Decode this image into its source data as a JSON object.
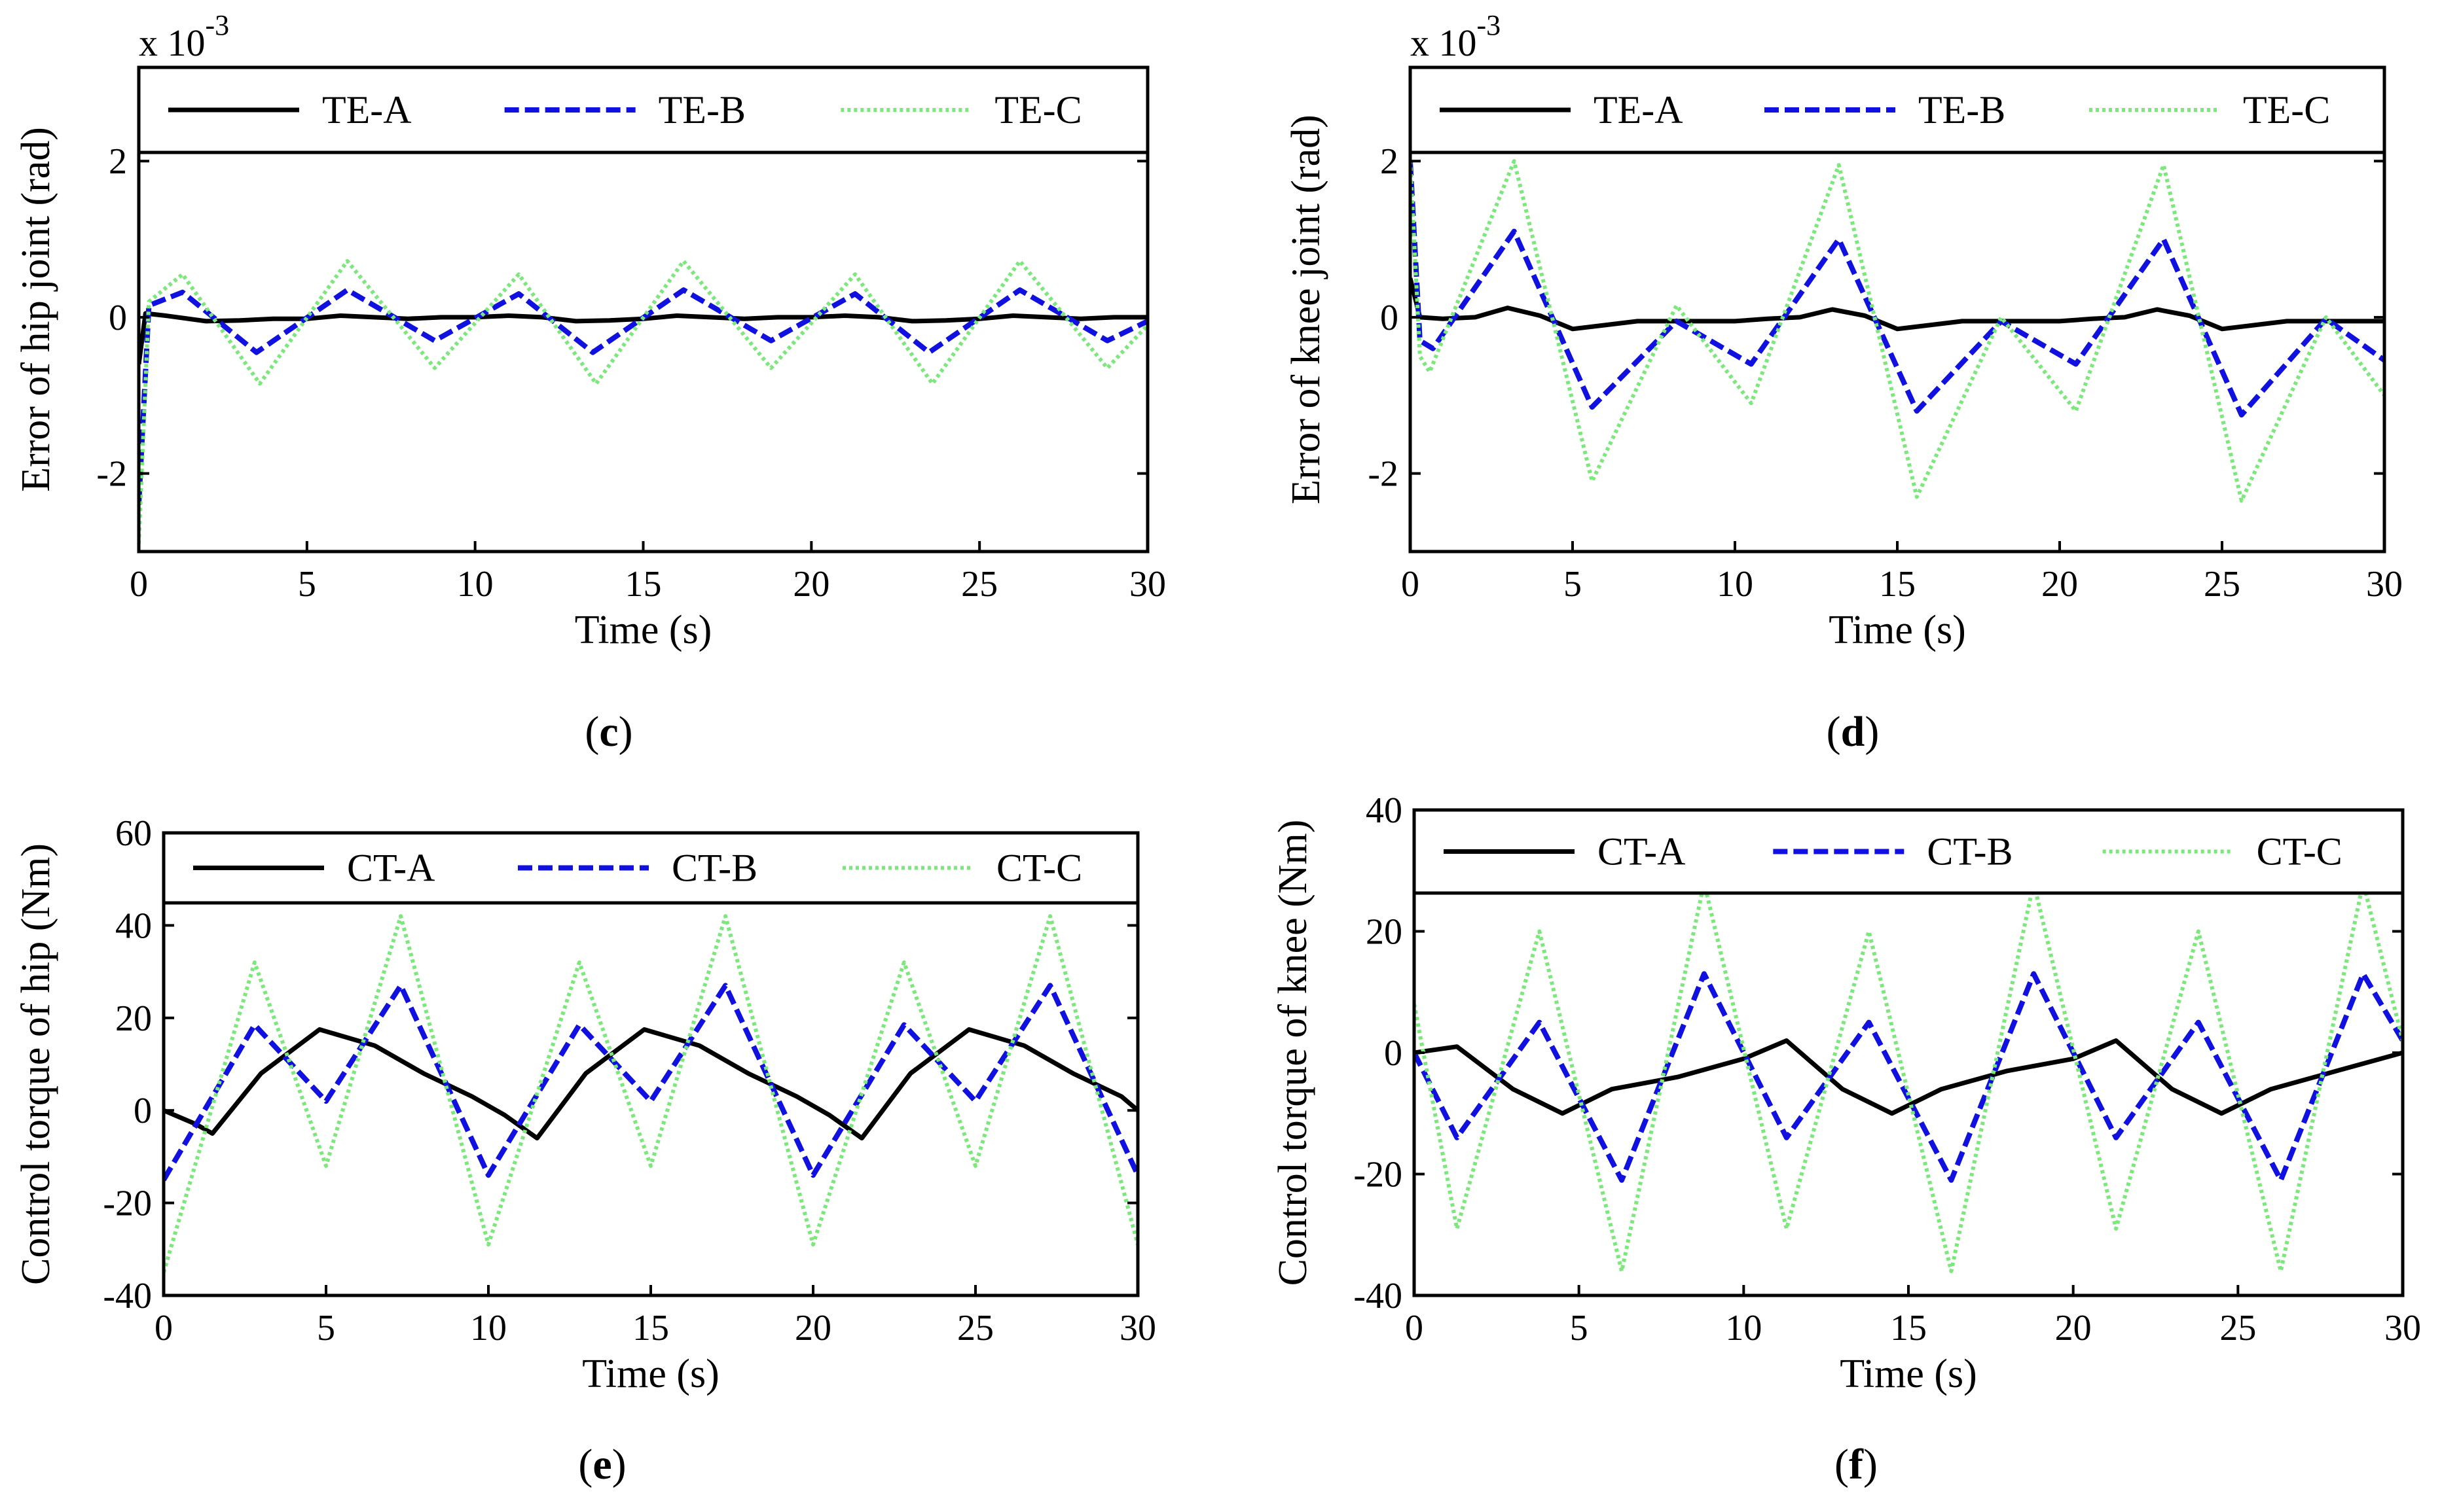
{
  "colors": {
    "A": "#000000",
    "B": "#1010e0",
    "C": "#7ce87c"
  },
  "chart_data": [
    {
      "id": "c",
      "type": "line",
      "panel_label": "c",
      "xlabel": "Time (s)",
      "ylabel": "Error of hip joint (rad)",
      "xlim": [
        0,
        30
      ],
      "ylim": [
        -3,
        3.2
      ],
      "xticks": [
        "0",
        "5",
        "10",
        "15",
        "20",
        "25",
        "30"
      ],
      "yticks": [
        "-2",
        "0",
        "2"
      ],
      "scale_note": "x 10",
      "scale_exp": "-3",
      "legend": [
        "TE-A",
        "TE-B",
        "TE-C"
      ],
      "series": [
        {
          "name": "TE-A",
          "x": [
            0,
            0.2,
            0.8,
            2,
            3,
            4,
            5,
            6,
            7,
            8,
            9,
            10,
            11,
            12,
            13,
            14,
            15,
            16,
            17,
            18,
            19,
            20,
            21,
            22,
            23,
            24,
            25,
            26,
            27,
            28,
            29,
            30
          ],
          "values": [
            -0.6,
            0.05,
            0.02,
            -0.05,
            -0.04,
            -0.02,
            -0.02,
            0.02,
            0.0,
            -0.02,
            0.0,
            0.0,
            0.02,
            0.0,
            -0.05,
            -0.04,
            -0.02,
            0.02,
            0.0,
            -0.02,
            0.0,
            0.0,
            0.02,
            0.0,
            -0.05,
            -0.04,
            -0.02,
            0.02,
            0.0,
            -0.02,
            0.0,
            0.0
          ]
        },
        {
          "name": "TE-B",
          "x": [
            0,
            0.3,
            1.3,
            3.5,
            6.2,
            8.8,
            11.3,
            13.5,
            16.2,
            18.8,
            21.3,
            23.5,
            26.2,
            28.8,
            30
          ],
          "values": [
            -2.4,
            0.15,
            0.32,
            -0.45,
            0.35,
            -0.3,
            0.3,
            -0.45,
            0.35,
            -0.3,
            0.3,
            -0.45,
            0.35,
            -0.3,
            -0.05
          ]
        },
        {
          "name": "TE-C",
          "x": [
            0,
            0.3,
            1.3,
            3.6,
            6.2,
            8.8,
            11.3,
            13.6,
            16.2,
            18.8,
            21.3,
            23.6,
            26.2,
            28.8,
            30
          ],
          "values": [
            -2.9,
            0.2,
            0.55,
            -0.85,
            0.72,
            -0.65,
            0.55,
            -0.85,
            0.72,
            -0.65,
            0.55,
            -0.85,
            0.72,
            -0.65,
            -0.1
          ]
        }
      ]
    },
    {
      "id": "d",
      "type": "line",
      "panel_label": "d",
      "xlabel": "Time (s)",
      "ylabel": "Error of knee joint (rad)",
      "xlim": [
        0,
        30
      ],
      "ylim": [
        -3,
        3.2
      ],
      "xticks": [
        "0",
        "5",
        "10",
        "15",
        "20",
        "25",
        "30"
      ],
      "yticks": [
        "-2",
        "0",
        "2"
      ],
      "scale_note": "x 10",
      "scale_exp": "-3",
      "legend": [
        "TE-A",
        "TE-B",
        "TE-C"
      ],
      "series": [
        {
          "name": "TE-A",
          "x": [
            0,
            0.3,
            1,
            2,
            3,
            4,
            5,
            6,
            7,
            8,
            9,
            10,
            11,
            12,
            13,
            14,
            15,
            16,
            17,
            18,
            19,
            20,
            21,
            22,
            23,
            24,
            25,
            26,
            27,
            28,
            29,
            30
          ],
          "values": [
            0.5,
            0.0,
            -0.02,
            0.0,
            0.12,
            0.02,
            -0.15,
            -0.1,
            -0.05,
            -0.05,
            -0.05,
            -0.05,
            -0.02,
            0.0,
            0.1,
            0.02,
            -0.15,
            -0.1,
            -0.05,
            -0.05,
            -0.05,
            -0.05,
            -0.02,
            0.0,
            0.1,
            0.02,
            -0.15,
            -0.1,
            -0.05,
            -0.05,
            -0.05,
            -0.05
          ]
        },
        {
          "name": "TE-B",
          "x": [
            0,
            0.3,
            0.7,
            3.2,
            5.6,
            8.2,
            10.5,
            13.2,
            15.6,
            18.2,
            20.5,
            23.2,
            25.6,
            28.2,
            30
          ],
          "values": [
            2.0,
            -0.3,
            -0.4,
            1.1,
            -1.15,
            -0.05,
            -0.6,
            1.0,
            -1.2,
            -0.05,
            -0.6,
            1.0,
            -1.25,
            -0.02,
            -0.55
          ]
        },
        {
          "name": "TE-C",
          "x": [
            0,
            0.3,
            0.6,
            3.2,
            5.6,
            8.2,
            10.5,
            13.2,
            15.6,
            18.2,
            20.5,
            23.2,
            25.6,
            28.2,
            30
          ],
          "values": [
            2.0,
            -0.5,
            -0.7,
            2.0,
            -2.1,
            0.15,
            -1.1,
            1.95,
            -2.3,
            0.0,
            -1.2,
            1.95,
            -2.35,
            0.0,
            -1.0
          ]
        }
      ]
    },
    {
      "id": "e",
      "type": "line",
      "panel_label": "e",
      "xlabel": "Time (s)",
      "ylabel": "Control torque of hip (Nm)",
      "xlim": [
        0,
        30
      ],
      "ylim": [
        -40,
        60
      ],
      "xticks": [
        "0",
        "5",
        "10",
        "15",
        "20",
        "25",
        "30"
      ],
      "yticks": [
        "-40",
        "-20",
        "0",
        "20",
        "40",
        "60"
      ],
      "legend": [
        "CT-A",
        "CT-B",
        "CT-C"
      ],
      "series": [
        {
          "name": "CT-A",
          "x": [
            0,
            1,
            1.5,
            3,
            4.8,
            6.5,
            8,
            9.5,
            10.5,
            11.5,
            13,
            14.8,
            16.5,
            18,
            19.5,
            20.5,
            21.5,
            23,
            24.8,
            26.5,
            28,
            29.5,
            30
          ],
          "values": [
            0,
            -3,
            -5,
            8,
            17.5,
            14,
            8,
            3,
            -1,
            -6,
            8,
            17.5,
            14,
            8,
            3,
            -1,
            -6,
            8,
            17.5,
            14,
            8,
            3,
            0
          ]
        },
        {
          "name": "CT-B",
          "x": [
            0,
            2.8,
            5,
            7.3,
            10,
            12.8,
            15,
            17.3,
            20,
            22.8,
            25,
            27.3,
            30
          ],
          "values": [
            -15,
            18.5,
            2,
            27,
            -14,
            18.5,
            2,
            27,
            -14,
            18.5,
            2,
            27,
            -14
          ]
        },
        {
          "name": "CT-C",
          "x": [
            0,
            2.8,
            5,
            7.3,
            10,
            12.8,
            15,
            17.3,
            20,
            22.8,
            25,
            27.3,
            30
          ],
          "values": [
            -35,
            32,
            -12,
            42,
            -29,
            32,
            -12,
            42,
            -29,
            32,
            -12,
            42,
            -29
          ]
        }
      ]
    },
    {
      "id": "f",
      "type": "line",
      "panel_label": "f",
      "xlabel": "Time (s)",
      "ylabel": "Control torque of knee (Nm)",
      "xlim": [
        0,
        30
      ],
      "ylim": [
        -40,
        40
      ],
      "xticks": [
        "0",
        "5",
        "10",
        "15",
        "20",
        "25",
        "30"
      ],
      "yticks": [
        "-40",
        "-20",
        "0",
        "20",
        "40"
      ],
      "legend": [
        "CT-A",
        "CT-B",
        "CT-C"
      ],
      "series": [
        {
          "name": "CT-A",
          "x": [
            0,
            1.3,
            3,
            4.5,
            6,
            8,
            10,
            11.3,
            13,
            14.5,
            16,
            18,
            20,
            21.3,
            23,
            24.5,
            26,
            28,
            30
          ],
          "values": [
            0,
            1,
            -6,
            -10,
            -6,
            -4,
            -1,
            2,
            -6,
            -10,
            -6,
            -3,
            -1,
            2,
            -6,
            -10,
            -6,
            -3,
            0
          ]
        },
        {
          "name": "CT-B",
          "x": [
            0,
            1.3,
            3.8,
            6.3,
            8.8,
            11.3,
            13.8,
            16.3,
            18.8,
            21.3,
            23.8,
            26.3,
            28.8,
            30
          ],
          "values": [
            0,
            -14,
            5,
            -21,
            13,
            -14,
            5,
            -21,
            13,
            -14,
            5,
            -21,
            13,
            2
          ]
        },
        {
          "name": "CT-C",
          "x": [
            0,
            1.3,
            3.8,
            6.3,
            8.8,
            11.3,
            13.8,
            16.3,
            18.8,
            21.3,
            23.8,
            26.3,
            28.8,
            30
          ],
          "values": [
            8,
            -29,
            20,
            -36,
            28,
            -29,
            20,
            -36,
            28,
            -29,
            20,
            -36,
            28,
            2
          ]
        }
      ]
    }
  ]
}
